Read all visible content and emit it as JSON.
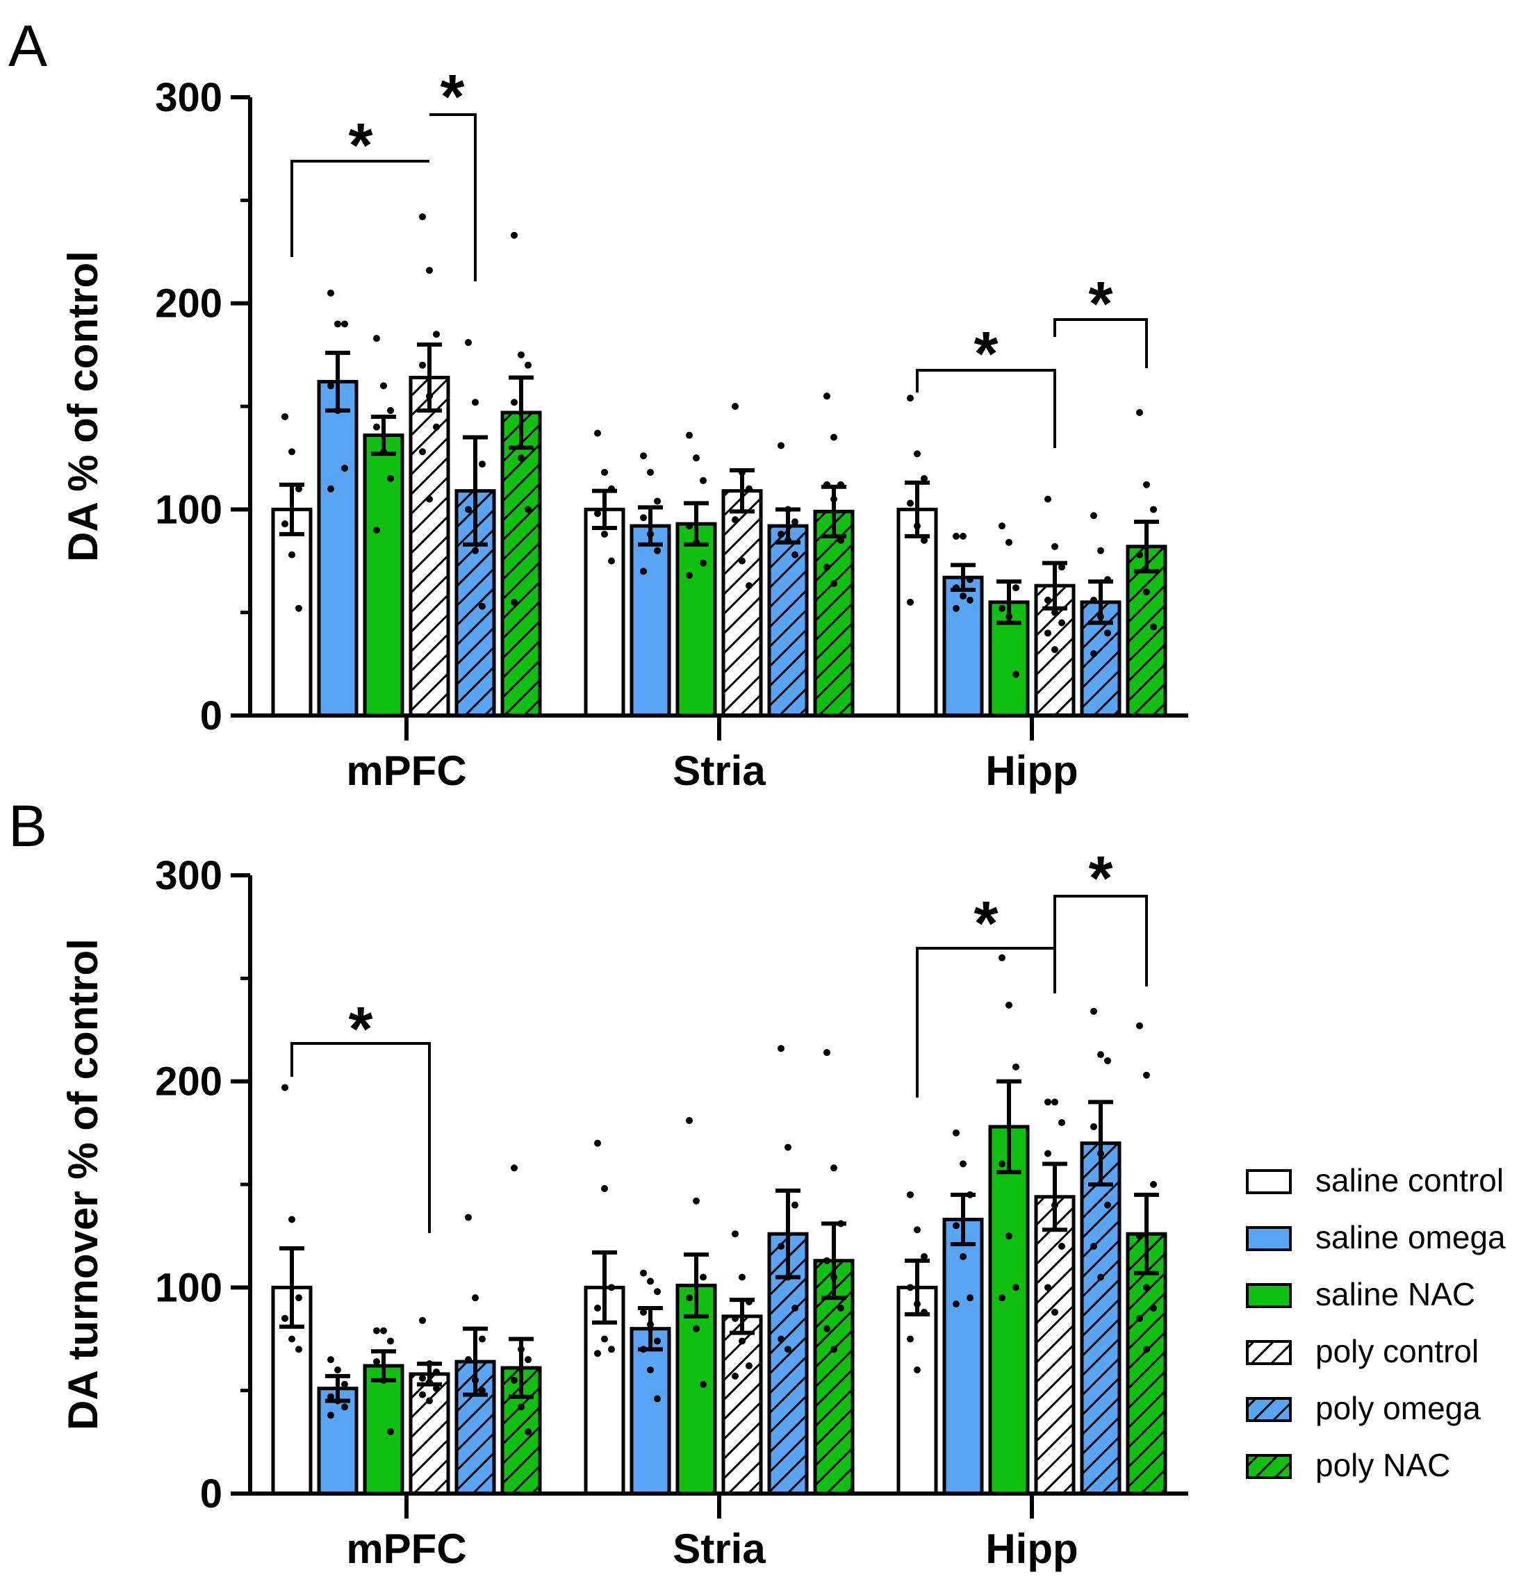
{
  "colors": {
    "saline_control": "#ffffff",
    "saline_omega": "#5aa4f5",
    "saline_NAC": "#10c010",
    "outline": "#000000"
  },
  "legend": [
    {
      "label": "saline control",
      "color": "#ffffff",
      "hatched": false
    },
    {
      "label": "saline omega",
      "color": "#5aa4f5",
      "hatched": false
    },
    {
      "label": "saline NAC",
      "color": "#10c010",
      "hatched": false
    },
    {
      "label": "poly control",
      "color": "#ffffff",
      "hatched": true
    },
    {
      "label": "poly omega",
      "color": "#5aa4f5",
      "hatched": true
    },
    {
      "label": "poly NAC",
      "color": "#10c010",
      "hatched": true
    }
  ],
  "chart_data": [
    {
      "panel": "A",
      "type": "bar",
      "ylabel": "DA % of control",
      "ylim": [
        0,
        300
      ],
      "yticks": [
        0,
        100,
        200,
        300
      ],
      "categories": [
        "mPFC",
        "Stria",
        "Hipp"
      ],
      "series": [
        {
          "name": "saline control",
          "values": [
            100,
            100,
            100
          ],
          "sem": [
            12,
            9,
            13
          ]
        },
        {
          "name": "saline omega",
          "values": [
            162,
            92,
            67
          ],
          "sem": [
            14,
            9,
            6
          ]
        },
        {
          "name": "saline NAC",
          "values": [
            136,
            93,
            55
          ],
          "sem": [
            9,
            10,
            10
          ]
        },
        {
          "name": "poly control",
          "values": [
            164,
            109,
            63
          ],
          "sem": [
            16,
            10,
            11
          ]
        },
        {
          "name": "poly omega",
          "values": [
            109,
            92,
            55
          ],
          "sem": [
            26,
            8,
            10
          ]
        },
        {
          "name": "poly NAC",
          "values": [
            147,
            99,
            82
          ],
          "sem": [
            17,
            12,
            12
          ]
        }
      ],
      "points": [
        [
          [
            145,
            128,
            110,
            93,
            78,
            52
          ],
          [
            205,
            190,
            190,
            160,
            148,
            120,
            110
          ],
          [
            183,
            160,
            148,
            140,
            128,
            115,
            90
          ],
          [
            242,
            216,
            185,
            170,
            155,
            140,
            128,
            105
          ],
          [
            181,
            152,
            122,
            100,
            80,
            53
          ],
          [
            233,
            175,
            170,
            152,
            125,
            100,
            55
          ]
        ],
        [
          [
            137,
            118,
            110,
            98,
            88,
            75
          ],
          [
            126,
            118,
            104,
            96,
            88,
            80,
            70
          ],
          [
            136,
            125,
            114,
            92,
            84,
            74,
            68
          ],
          [
            150,
            118,
            110,
            95,
            75,
            63
          ],
          [
            131,
            100,
            94,
            88,
            85,
            78
          ],
          [
            155,
            135,
            112,
            112,
            105,
            85,
            72,
            64
          ]
        ],
        [
          [
            154,
            127,
            115,
            103,
            92,
            85,
            55
          ],
          [
            87,
            87,
            66,
            62,
            58,
            56,
            52
          ],
          [
            92,
            84,
            62,
            52,
            48,
            20
          ],
          [
            105,
            82,
            72,
            56,
            50,
            45,
            40,
            32
          ],
          [
            97,
            80,
            66,
            56,
            48,
            40,
            30
          ],
          [
            147,
            112,
            100,
            78,
            60,
            43
          ]
        ]
      ],
      "significance": [
        {
          "category": "mPFC",
          "from": "saline control",
          "to": "poly control",
          "label": "*"
        },
        {
          "category": "mPFC",
          "from": "poly control",
          "to": "poly omega",
          "label": "*"
        },
        {
          "category": "Hipp",
          "from": "saline control",
          "to": "poly control",
          "label": "*"
        },
        {
          "category": "Hipp",
          "from": "poly control",
          "to": "poly NAC",
          "label": "*"
        }
      ]
    },
    {
      "panel": "B",
      "type": "bar",
      "ylabel": "DA turnover % of control",
      "ylim": [
        0,
        300
      ],
      "yticks": [
        0,
        100,
        200,
        300
      ],
      "categories": [
        "mPFC",
        "Stria",
        "Hipp"
      ],
      "series": [
        {
          "name": "saline control",
          "values": [
            100,
            100,
            100
          ],
          "sem": [
            19,
            17,
            13
          ]
        },
        {
          "name": "saline omega",
          "values": [
            51,
            80,
            133
          ],
          "sem": [
            6,
            10,
            12
          ]
        },
        {
          "name": "saline NAC",
          "values": [
            62,
            101,
            178
          ],
          "sem": [
            7,
            15,
            22
          ]
        },
        {
          "name": "poly control",
          "values": [
            58,
            86,
            144
          ],
          "sem": [
            5,
            8,
            16
          ]
        },
        {
          "name": "poly omega",
          "values": [
            64,
            126,
            170
          ],
          "sem": [
            16,
            21,
            20
          ]
        },
        {
          "name": "poly NAC",
          "values": [
            61,
            113,
            126
          ],
          "sem": [
            14,
            18,
            19
          ]
        }
      ],
      "points": [
        [
          [
            197,
            133,
            95,
            85,
            75,
            70
          ],
          [
            65,
            60,
            53,
            47,
            45,
            42,
            38
          ],
          [
            79,
            79,
            74,
            64,
            55,
            30
          ],
          [
            84,
            63,
            59,
            56,
            54,
            51,
            48,
            45
          ],
          [
            134,
            95,
            75,
            65,
            55,
            50
          ],
          [
            158,
            70,
            65,
            55,
            42,
            30
          ]
        ],
        [
          [
            170,
            148,
            100,
            90,
            75,
            70,
            68
          ],
          [
            107,
            103,
            98,
            88,
            82,
            74,
            70,
            60,
            46
          ],
          [
            181,
            142,
            105,
            95,
            80,
            53
          ],
          [
            126,
            105,
            93,
            85,
            74,
            62,
            57
          ],
          [
            216,
            168,
            140,
            120,
            105,
            90,
            75,
            70
          ],
          [
            214,
            158,
            131,
            113,
            105,
            90,
            80,
            70
          ]
        ],
        [
          [
            145,
            128,
            115,
            100,
            92,
            88,
            75,
            60
          ],
          [
            175,
            160,
            145,
            130,
            115,
            95,
            92
          ],
          [
            260,
            237,
            207,
            160,
            125,
            100,
            95
          ],
          [
            190,
            190,
            180,
            165,
            140,
            120,
            100,
            88
          ],
          [
            234,
            213,
            210,
            178,
            165,
            140,
            120,
            105
          ],
          [
            227,
            203,
            150,
            125,
            100,
            90,
            85,
            70
          ]
        ]
      ],
      "significance": [
        {
          "category": "mPFC",
          "from": "saline control",
          "to": "poly control",
          "label": "*"
        },
        {
          "category": "Hipp",
          "from": "saline control",
          "to": "poly control",
          "label": "*"
        },
        {
          "category": "Hipp",
          "from": "poly control",
          "to": "poly NAC",
          "label": "*"
        }
      ]
    }
  ]
}
